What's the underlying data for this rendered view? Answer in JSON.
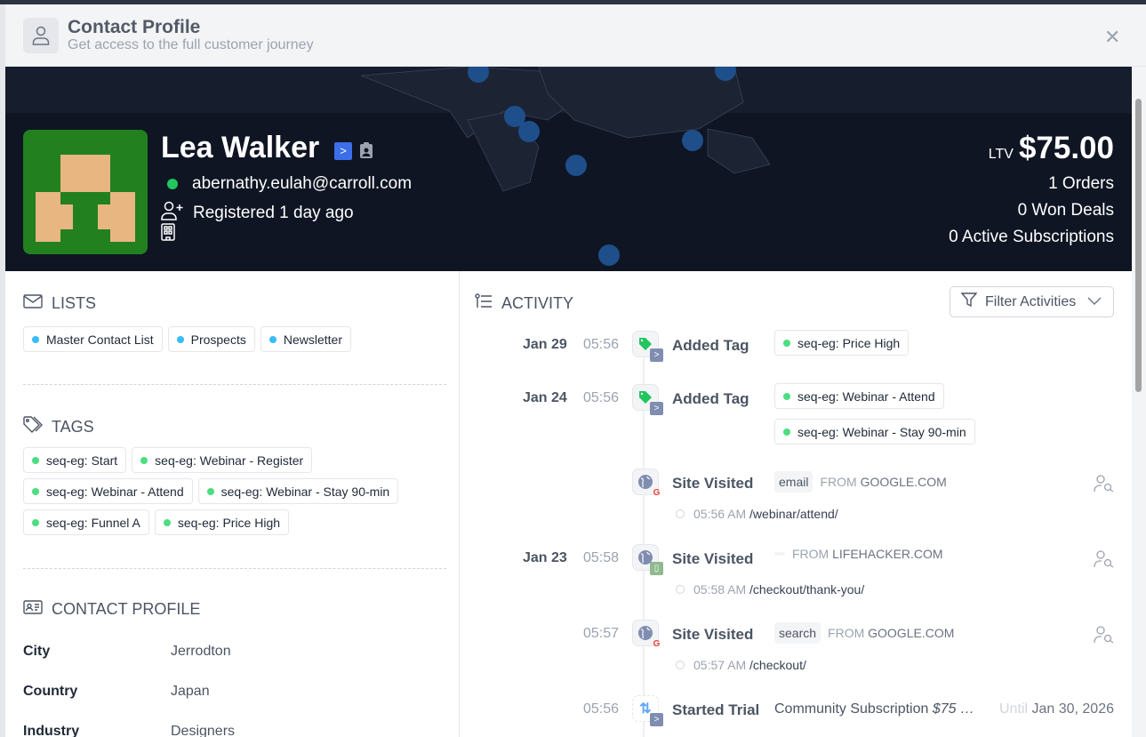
{
  "modal": {
    "title": "Contact Profile",
    "subtitle": "Get access to the full customer journey",
    "icon": "user-icon",
    "close_icon": "close-icon"
  },
  "contact": {
    "name": "Lea Walker",
    "email": "abernathy.eulah@carroll.com",
    "registered": "Registered 1 day ago",
    "status_color": "#22c55e",
    "avatar_bg": "#22801f",
    "avatar_fg": "#e7b681"
  },
  "stats": {
    "ltv_label": "LTV",
    "ltv": "$75.00",
    "orders": "1 Orders",
    "won_deals": "0 Won Deals",
    "subscriptions": "0 Active Subscriptions"
  },
  "lists": {
    "heading": "LISTS",
    "items": [
      "Master Contact List",
      "Prospects",
      "Newsletter"
    ],
    "dot_color": "#38bdf8"
  },
  "tags": {
    "heading": "TAGS",
    "items": [
      "seq-eg: Start",
      "seq-eg: Webinar - Register",
      "seq-eg: Webinar - Attend",
      "seq-eg: Webinar - Stay 90-min",
      "seq-eg: Funnel A",
      "seq-eg: Price High"
    ],
    "dot_color": "#4ade80"
  },
  "profile": {
    "heading": "CONTACT PROFILE",
    "rows": [
      {
        "label": "City",
        "value": "Jerrodton"
      },
      {
        "label": "Country",
        "value": "Japan"
      },
      {
        "label": "Industry",
        "value": "Designers"
      }
    ]
  },
  "activity": {
    "heading": "ACTIVITY",
    "filter_label": "Filter Activities",
    "from_label": "FROM",
    "items": [
      {
        "date": "Jan 29",
        "time": "05:56",
        "title": "Added Tag",
        "tags": [
          "seq-eg: Price High"
        ]
      },
      {
        "date": "Jan 24",
        "time": "05:56",
        "title": "Added Tag",
        "tags": [
          "seq-eg: Webinar - Attend",
          "seq-eg: Webinar - Stay 90-min"
        ]
      },
      {
        "date": "",
        "time": "",
        "title": "Site Visited",
        "medium": "email",
        "domain": "GOOGLE.COM",
        "url_time": "05:56 AM",
        "url": "/webinar/attend/"
      },
      {
        "date": "Jan 23",
        "time": "05:58",
        "title": "Site Visited",
        "medium": "",
        "domain": "LIFEHACKER.COM",
        "url_time": "05:58 AM",
        "url": "/checkout/thank-you/"
      },
      {
        "date": "",
        "time": "05:57",
        "title": "Site Visited",
        "medium": "search",
        "domain": "GOOGLE.COM",
        "url_time": "05:57 AM",
        "url": "/checkout/"
      },
      {
        "date": "",
        "time": "05:56",
        "title": "Started Trial",
        "description": "Community Subscription",
        "price": "$75 …",
        "until_label": "Until",
        "until": "Jan 30, 2026"
      }
    ]
  }
}
